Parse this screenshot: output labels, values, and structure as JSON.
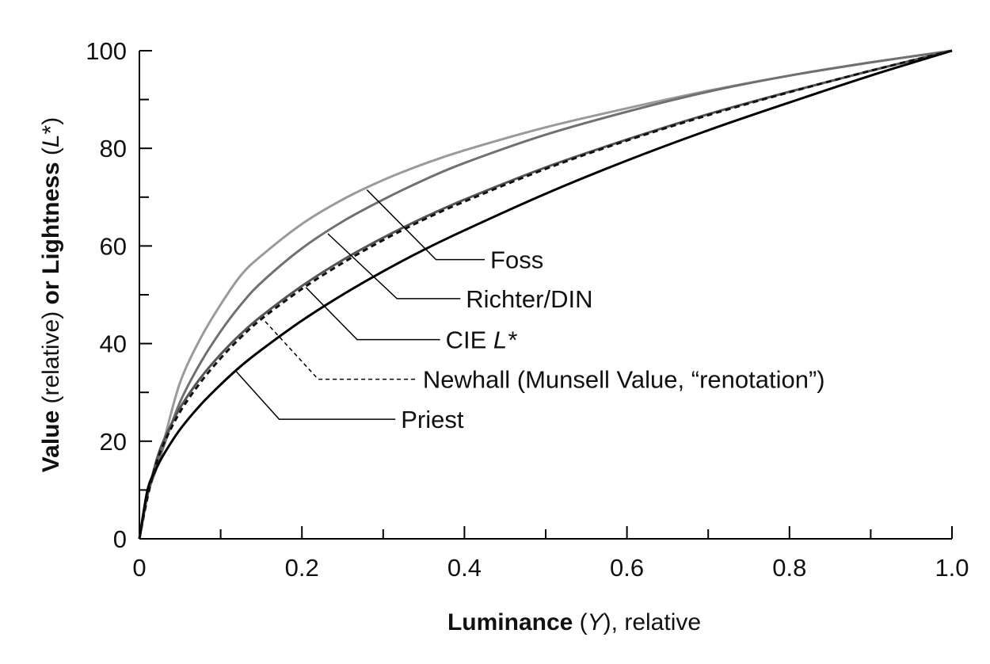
{
  "chart_data": {
    "type": "line",
    "xlabel": {
      "bold": "Luminance",
      "pre": " (",
      "italic": "Y",
      "post": "), relative"
    },
    "ylabel": {
      "bold1": "Value",
      "mid": " (relative) ",
      "bold2": "or Lightness",
      "open": " (",
      "italic": "L",
      "close": "*)"
    },
    "xlim": [
      0,
      1.0
    ],
    "ylim": [
      0,
      100
    ],
    "x_ticks": [
      {
        "value": 0,
        "label": "0"
      },
      {
        "value": 0.2,
        "label": "0.2"
      },
      {
        "value": 0.4,
        "label": "0.4"
      },
      {
        "value": 0.6,
        "label": "0.6"
      },
      {
        "value": 0.8,
        "label": "0.8"
      },
      {
        "value": 1.0,
        "label": "1.0"
      }
    ],
    "x_minor_ticks": [
      0.1,
      0.3,
      0.5,
      0.7,
      0.9
    ],
    "y_ticks": [
      {
        "value": 0,
        "label": "0"
      },
      {
        "value": 20,
        "label": "20"
      },
      {
        "value": 40,
        "label": "40"
      },
      {
        "value": 60,
        "label": "60"
      },
      {
        "value": 80,
        "label": "80"
      },
      {
        "value": 100,
        "label": "100"
      }
    ],
    "y_minor_ticks": [
      10,
      30,
      50,
      70,
      90
    ],
    "grid": false,
    "x": [
      0,
      0.01,
      0.02,
      0.03,
      0.05,
      0.075,
      0.1,
      0.125,
      0.15,
      0.2,
      0.25,
      0.3,
      0.35,
      0.4,
      0.5,
      0.6,
      0.7,
      0.8,
      0.9,
      1.0
    ],
    "series": [
      {
        "label": "Foss",
        "color": "#9a9a9a",
        "dash": "",
        "values": [
          0,
          9,
          14,
          20,
          32,
          41,
          48,
          54,
          58,
          64.5,
          69.5,
          73.5,
          76.8,
          79.6,
          84.3,
          88.2,
          91.8,
          94.9,
          97.6,
          100
        ]
      },
      {
        "label": "Richter/DIN",
        "color": "#707070",
        "dash": "",
        "values": [
          0,
          9,
          14,
          19,
          28,
          36,
          42.5,
          48,
          52.5,
          59.5,
          65,
          69.5,
          73.5,
          77,
          82.8,
          87.5,
          91.6,
          94.9,
          97.6,
          100
        ]
      },
      {
        "label": "CIE L*",
        "color": "#555555",
        "dash": "",
        "values": [
          0,
          8.99,
          15.5,
          20.2,
          26.8,
          32.9,
          37.8,
          42.0,
          45.6,
          51.8,
          57.1,
          61.7,
          65.8,
          69.5,
          76.1,
          81.8,
          87.0,
          91.6,
          95.9,
          100
        ]
      },
      {
        "label": "Newhall (Munsell Value, “renotation”)",
        "color": "#111111",
        "dash": "7,5",
        "values": [
          0,
          8.5,
          15,
          19.5,
          26,
          32,
          37,
          41.3,
          45,
          51.2,
          56.5,
          61.2,
          65.4,
          69.1,
          75.8,
          81.6,
          86.8,
          91.5,
          95.9,
          100
        ]
      },
      {
        "label": "Priest",
        "color": "#000000",
        "dash": "",
        "values": [
          0,
          10,
          14.1,
          17.3,
          22.4,
          27.4,
          31.6,
          35.4,
          38.7,
          44.7,
          50,
          54.8,
          59.2,
          63.2,
          70.7,
          77.5,
          83.7,
          89.4,
          94.9,
          100
        ]
      }
    ],
    "callouts": [
      {
        "series": 0,
        "label": "Foss",
        "italic": "",
        "anchor": [
          0.28,
          71.5
        ],
        "elbow": [
          0.365,
          57.2
        ],
        "end": [
          0.425,
          57.2
        ]
      },
      {
        "series": 1,
        "label": "Richter/DIN",
        "italic": "",
        "anchor": [
          0.232,
          62.5
        ],
        "elbow": [
          0.317,
          49.2
        ],
        "end": [
          0.395,
          49.2
        ]
      },
      {
        "series": 2,
        "label": "CIE ",
        "italic": "L*",
        "anchor": [
          0.205,
          51.5
        ],
        "elbow": [
          0.268,
          40.8
        ],
        "end": [
          0.37,
          40.8
        ]
      },
      {
        "series": 3,
        "label": "Newhall (Munsell Value, “renotation”)",
        "italic": "",
        "anchor": [
          0.155,
          44.5
        ],
        "elbow": [
          0.22,
          32.7
        ],
        "end": [
          0.342,
          32.7
        ]
      },
      {
        "series": 4,
        "label": "Priest",
        "italic": "",
        "anchor": [
          0.118,
          34.5
        ],
        "elbow": [
          0.172,
          24.5
        ],
        "end": [
          0.315,
          24.5
        ]
      }
    ]
  }
}
